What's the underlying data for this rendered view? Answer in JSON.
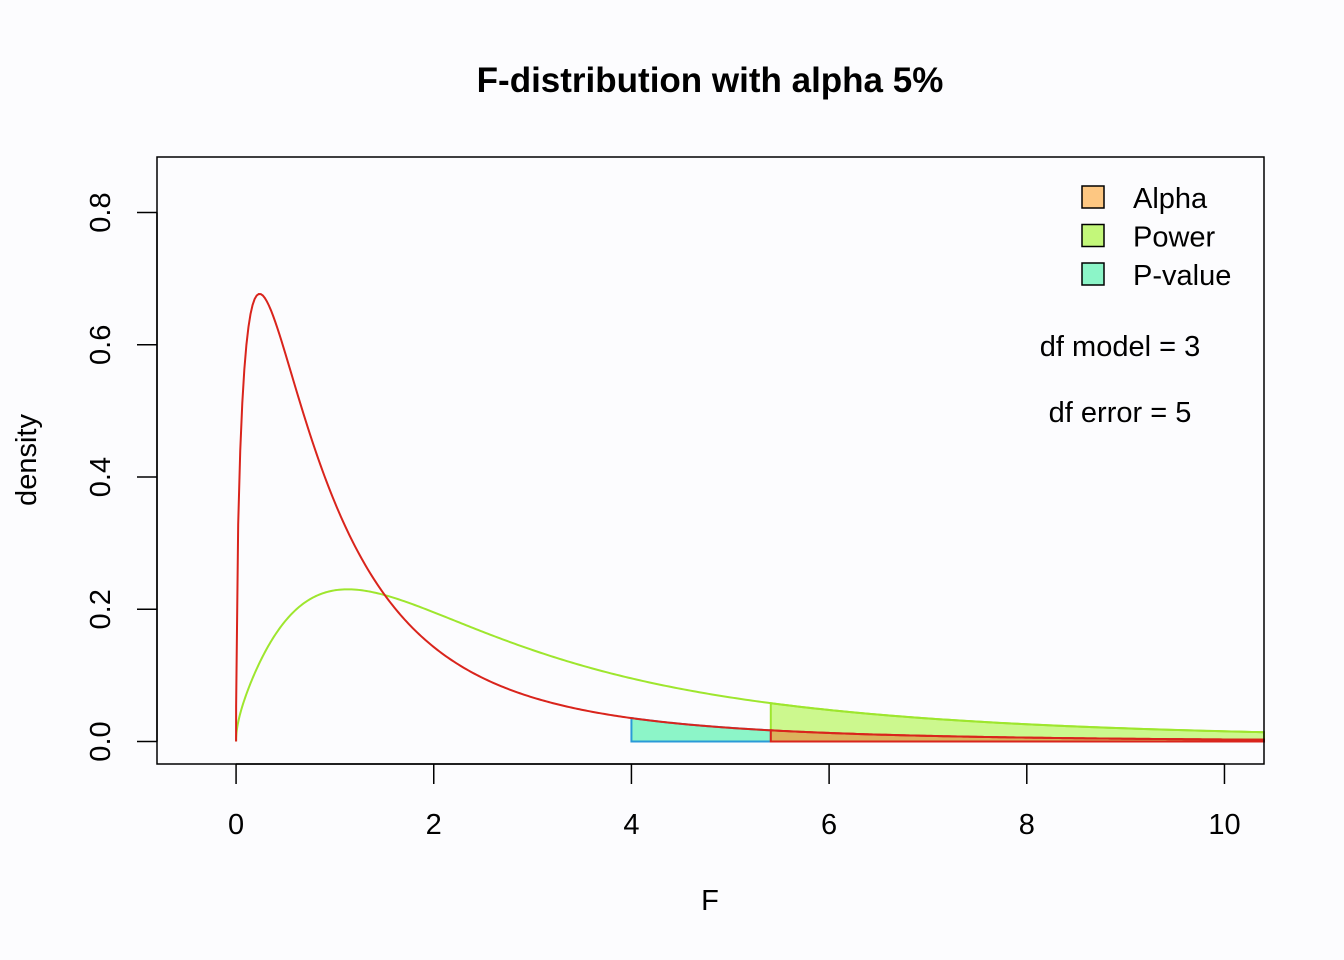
{
  "chart_data": {
    "type": "area",
    "title": "F-distribution with alpha 5%",
    "xlabel": "F",
    "ylabel": "density",
    "xlim": [
      -0.8,
      10.4
    ],
    "ylim": [
      -0.034,
      0.884
    ],
    "x_ticks": [
      0,
      2,
      4,
      6,
      8,
      10
    ],
    "x_tick_labels": [
      "0",
      "2",
      "4",
      "6",
      "8",
      "10"
    ],
    "y_ticks": [
      0.0,
      0.2,
      0.4,
      0.6,
      0.8
    ],
    "y_tick_labels": [
      "0.0",
      "0.2",
      "0.4",
      "0.6",
      "0.8"
    ],
    "grid": false,
    "legend": {
      "position": "top-right",
      "entries": [
        {
          "label": "Alpha",
          "color": "#fdc782"
        },
        {
          "label": "Power",
          "color": "#c3f77a"
        },
        {
          "label": "P-value",
          "color": "#8cf5c8"
        }
      ]
    },
    "annotations": [
      "df model = 3",
      "df error = 5"
    ],
    "distributions": {
      "null": {
        "df1": 3,
        "df2": 5,
        "ncp": 0,
        "color": "#d9241c"
      },
      "alternative": {
        "df1": 3,
        "df2": 5,
        "ncp": 5,
        "color": "#9ee62e"
      }
    },
    "critical_value": 5.41,
    "observed_F": 4.0,
    "shaded_regions": [
      {
        "name": "Power",
        "from": 5.41,
        "to": 10.4,
        "fill": "#c3f77a",
        "stroke": "#9ee62e"
      },
      {
        "name": "P-value",
        "from": 4.0,
        "to": 5.41,
        "fill": "#8cf5c8",
        "stroke": "#2a9ad8"
      },
      {
        "name": "Alpha",
        "from": 5.41,
        "to": 10.4,
        "fill": "#e0a050",
        "stroke": "#d9241c"
      }
    ]
  }
}
